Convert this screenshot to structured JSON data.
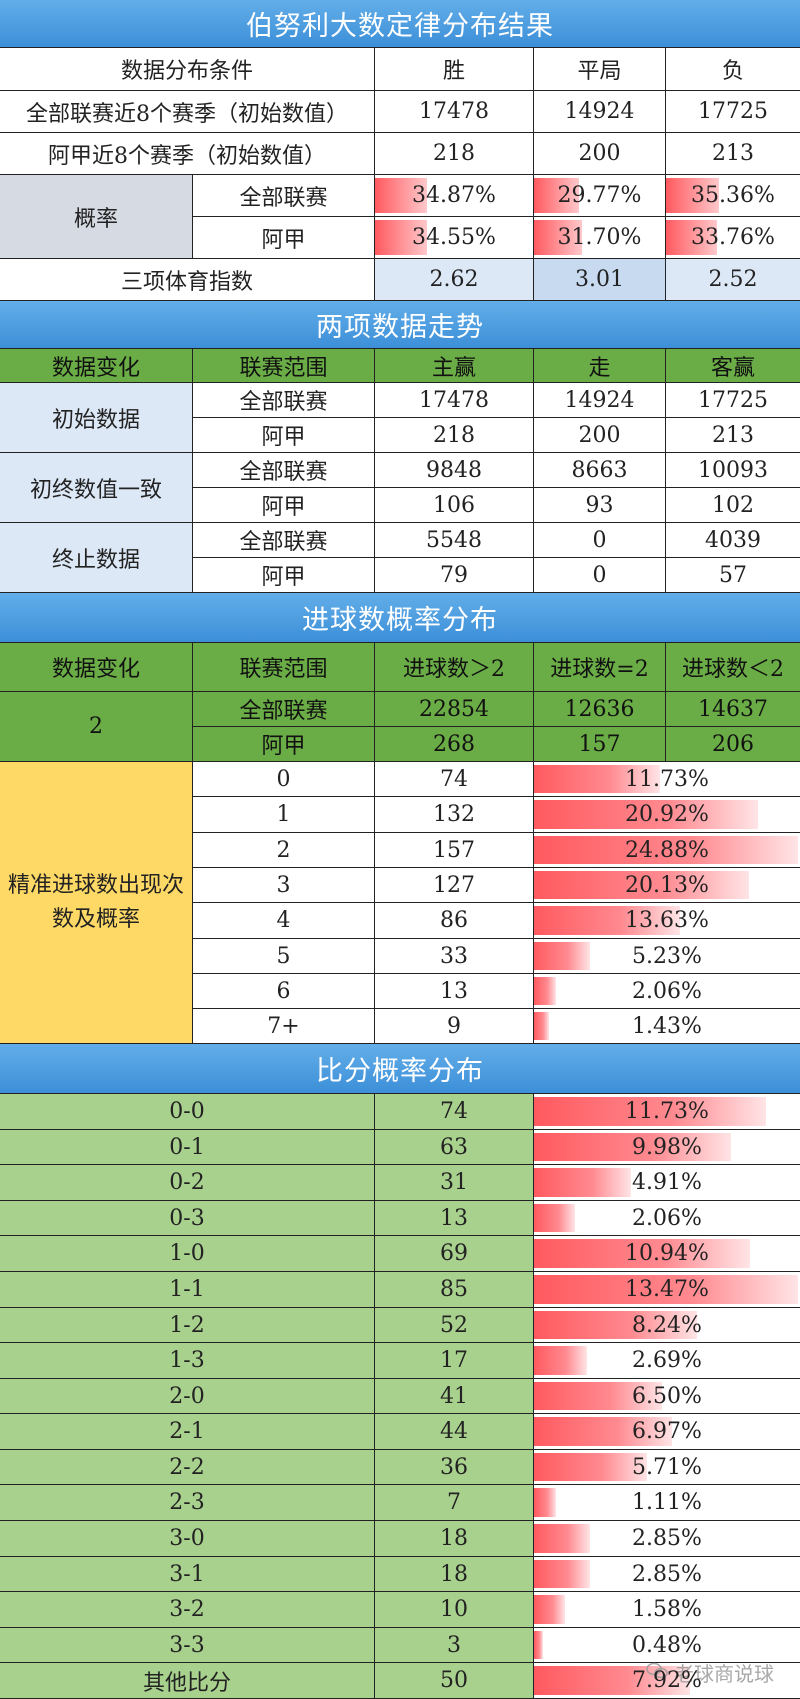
{
  "section1": {
    "title": "伯努利大数定律分布结果",
    "header": [
      "数据分布条件",
      "胜",
      "平局",
      "负"
    ],
    "rows": [
      {
        "label": "全部联赛近8个赛季（初始数值）",
        "values": [
          "17478",
          "14924",
          "17725"
        ]
      },
      {
        "label": "阿甲近8个赛季（初始数值）",
        "values": [
          "218",
          "200",
          "213"
        ]
      }
    ],
    "prob_label": "概率",
    "prob_rows": [
      {
        "label": "全部联赛",
        "values": [
          "34.87%",
          "29.77%",
          "35.36%"
        ],
        "fractions": [
          0.3487,
          0.2977,
          0.3536
        ]
      },
      {
        "label": "阿甲",
        "values": [
          "34.55%",
          "31.70%",
          "33.76%"
        ],
        "fractions": [
          0.3455,
          0.317,
          0.3376
        ]
      }
    ],
    "index_row": {
      "label": "三项体育指数",
      "values": [
        "2.62",
        "3.01",
        "2.52"
      ]
    }
  },
  "section2": {
    "title": "两项数据走势",
    "header": [
      "数据变化",
      "联赛范围",
      "主赢",
      "走",
      "客赢"
    ],
    "groups": [
      {
        "label": "初始数据",
        "rows": [
          {
            "scope": "全部联赛",
            "values": [
              "17478",
              "14924",
              "17725"
            ]
          },
          {
            "scope": "阿甲",
            "values": [
              "218",
              "200",
              "213"
            ]
          }
        ]
      },
      {
        "label": "初终数值一致",
        "rows": [
          {
            "scope": "全部联赛",
            "values": [
              "9848",
              "8663",
              "10093"
            ]
          },
          {
            "scope": "阿甲",
            "values": [
              "106",
              "93",
              "102"
            ]
          }
        ]
      },
      {
        "label": "终止数据",
        "rows": [
          {
            "scope": "全部联赛",
            "values": [
              "5548",
              "0",
              "4039"
            ]
          },
          {
            "scope": "阿甲",
            "values": [
              "79",
              "0",
              "57"
            ]
          }
        ]
      }
    ]
  },
  "section3": {
    "title": "进球数概率分布",
    "header": [
      "数据变化",
      "联赛范围",
      "进球数＞2",
      "进球数=2",
      "进球数＜2"
    ],
    "group_label": "2",
    "rows": [
      {
        "scope": "全部联赛",
        "values": [
          "22854",
          "12636",
          "14637"
        ]
      },
      {
        "scope": "阿甲",
        "values": [
          "268",
          "157",
          "206"
        ]
      }
    ],
    "exact_label": "精准进球数出现次数及概率",
    "exact_rows": [
      {
        "goals": "0",
        "count": "74",
        "prob": "11.73%",
        "fraction": 0.1173
      },
      {
        "goals": "1",
        "count": "132",
        "prob": "20.92%",
        "fraction": 0.2092
      },
      {
        "goals": "2",
        "count": "157",
        "prob": "24.88%",
        "fraction": 0.2488
      },
      {
        "goals": "3",
        "count": "127",
        "prob": "20.13%",
        "fraction": 0.2013
      },
      {
        "goals": "4",
        "count": "86",
        "prob": "13.63%",
        "fraction": 0.1363
      },
      {
        "goals": "5",
        "count": "33",
        "prob": "5.23%",
        "fraction": 0.0523
      },
      {
        "goals": "6",
        "count": "13",
        "prob": "2.06%",
        "fraction": 0.0206
      },
      {
        "goals": "7+",
        "count": "9",
        "prob": "1.43%",
        "fraction": 0.0143
      }
    ]
  },
  "section4": {
    "title": "比分概率分布",
    "rows": [
      {
        "score": "0-0",
        "count": "74",
        "prob": "11.73%",
        "fraction": 0.1173
      },
      {
        "score": "0-1",
        "count": "63",
        "prob": "9.98%",
        "fraction": 0.0998
      },
      {
        "score": "0-2",
        "count": "31",
        "prob": "4.91%",
        "fraction": 0.0491
      },
      {
        "score": "0-3",
        "count": "13",
        "prob": "2.06%",
        "fraction": 0.0206
      },
      {
        "score": "1-0",
        "count": "69",
        "prob": "10.94%",
        "fraction": 0.1094
      },
      {
        "score": "1-1",
        "count": "85",
        "prob": "13.47%",
        "fraction": 0.1347
      },
      {
        "score": "1-2",
        "count": "52",
        "prob": "8.24%",
        "fraction": 0.0824
      },
      {
        "score": "1-3",
        "count": "17",
        "prob": "2.69%",
        "fraction": 0.0269
      },
      {
        "score": "2-0",
        "count": "41",
        "prob": "6.50%",
        "fraction": 0.065
      },
      {
        "score": "2-1",
        "count": "44",
        "prob": "6.97%",
        "fraction": 0.0697
      },
      {
        "score": "2-2",
        "count": "36",
        "prob": "5.71%",
        "fraction": 0.0571
      },
      {
        "score": "2-3",
        "count": "7",
        "prob": "1.11%",
        "fraction": 0.0111
      },
      {
        "score": "3-0",
        "count": "18",
        "prob": "2.85%",
        "fraction": 0.0285
      },
      {
        "score": "3-1",
        "count": "18",
        "prob": "2.85%",
        "fraction": 0.0285
      },
      {
        "score": "3-2",
        "count": "10",
        "prob": "1.58%",
        "fraction": 0.0158
      },
      {
        "score": "3-3",
        "count": "3",
        "prob": "0.48%",
        "fraction": 0.0048
      },
      {
        "score": "其他比分",
        "count": "50",
        "prob": "7.92%",
        "fraction": 0.0792
      }
    ]
  },
  "watermark": {
    "text": "老球商说球",
    "icon": "chat-bubble-icon"
  },
  "colors": {
    "banner": "#4a9be0",
    "header_green": "#6aac45",
    "row_green": "#a9d18e",
    "label_yellow": "#ffd966",
    "label_gray": "#d6dbe3",
    "label_lightblue": "#dde8f7",
    "bar_red": "#ff5a5f"
  }
}
